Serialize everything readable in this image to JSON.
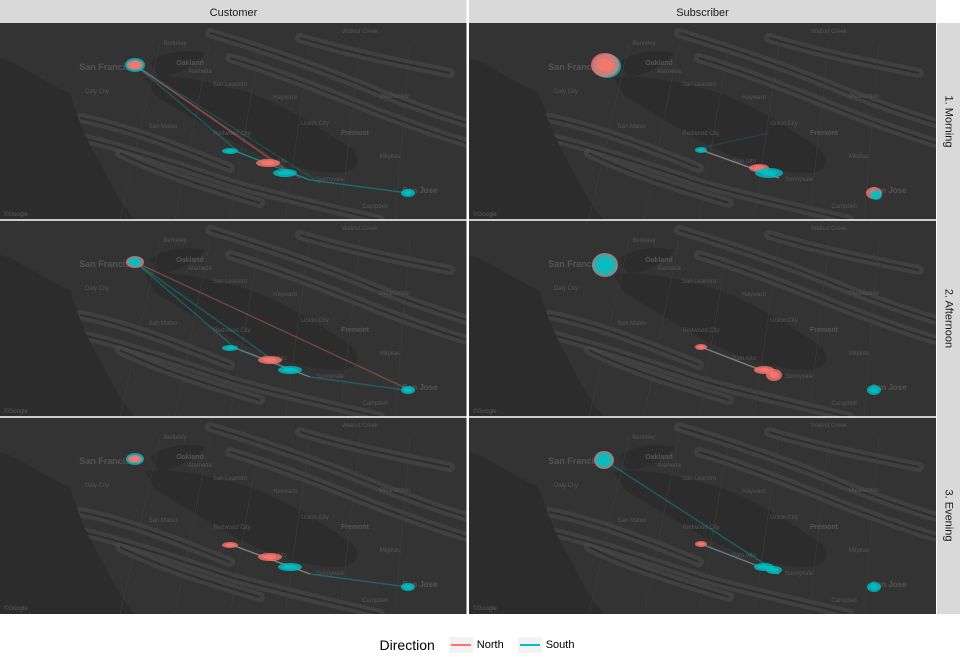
{
  "columns": [
    "Customer",
    "Subscriber"
  ],
  "rows": [
    "1. Morning",
    "2. Afternoon",
    "3. Evening"
  ],
  "legend": {
    "title": "Direction",
    "items": [
      {
        "label": "North",
        "color": "#F8766D"
      },
      {
        "label": "South",
        "color": "#00BFC4"
      }
    ]
  },
  "map": {
    "place_labels": [
      "San Francisco",
      "Oakland",
      "Berkeley",
      "Alameda",
      "Daly City",
      "San Leandro",
      "Hayward",
      "San Mateo",
      "Redwood City",
      "Palo Alto",
      "Union City",
      "Fremont",
      "Milpitas",
      "Sunnyvale",
      "San Jose",
      "Campbell",
      "Walnut Creek",
      "Pleasanton"
    ],
    "attribution": "©Google",
    "background": "#333333",
    "water_color": "#2c2c2c"
  }
}
